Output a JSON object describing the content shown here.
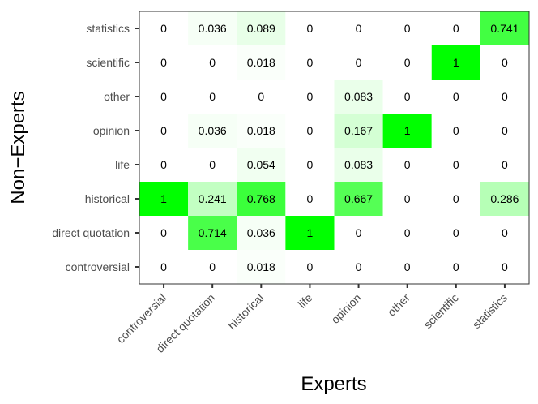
{
  "chart_data": {
    "type": "heatmap",
    "title": "",
    "xlabel": "Experts",
    "ylabel": "Non−Experts",
    "x_categories": [
      "controversial",
      "direct quotation",
      "historical",
      "life",
      "opinion",
      "other",
      "scientific",
      "statistics"
    ],
    "y_categories": [
      "controversial",
      "direct quotation",
      "historical",
      "life",
      "opinion",
      "other",
      "scientific",
      "statistics"
    ],
    "value_range": [
      0,
      1
    ],
    "colors": {
      "low": "#ffffff",
      "high": "#00ff00",
      "panel_border": "#333333",
      "tick": "#333333"
    },
    "values": [
      [
        "0",
        "0",
        "0.018",
        "0",
        "0",
        "0",
        "0",
        "0"
      ],
      [
        "0",
        "0.714",
        "0.036",
        "1",
        "0",
        "0",
        "0",
        "0"
      ],
      [
        "1",
        "0.241",
        "0.768",
        "0",
        "0.667",
        "0",
        "0",
        "0.286"
      ],
      [
        "0",
        "0",
        "0.054",
        "0",
        "0.083",
        "0",
        "0",
        "0"
      ],
      [
        "0",
        "0.036",
        "0.018",
        "0",
        "0.167",
        "1",
        "0",
        "0"
      ],
      [
        "0",
        "0",
        "0",
        "0",
        "0.083",
        "0",
        "0",
        "0"
      ],
      [
        "0",
        "0",
        "0.018",
        "0",
        "0",
        "0",
        "1",
        "0"
      ],
      [
        "0",
        "0.036",
        "0.089",
        "0",
        "0",
        "0",
        "0",
        "0.741"
      ]
    ]
  }
}
